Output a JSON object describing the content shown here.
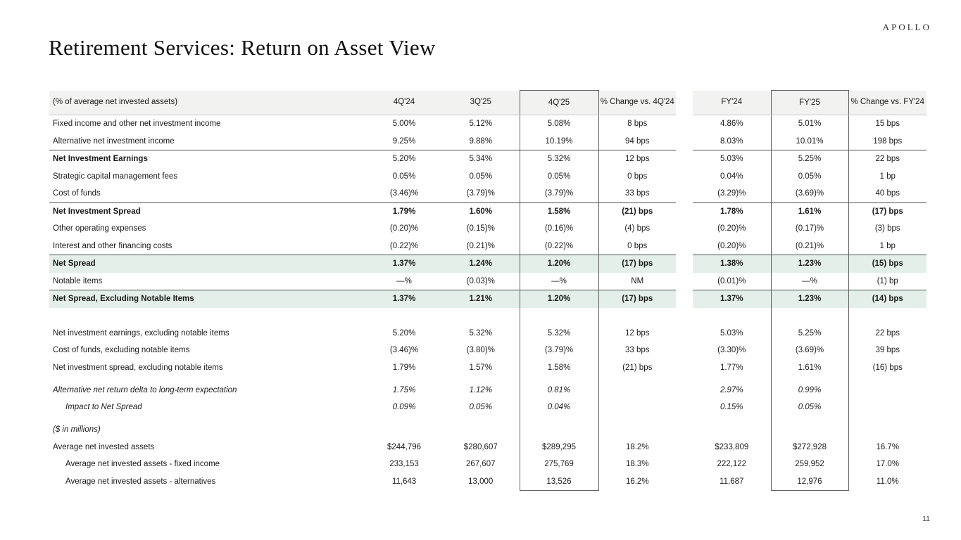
{
  "page": {
    "logo": "APOLLO",
    "title": "Retirement Services: Return on Asset View",
    "page_number": "11"
  },
  "colors": {
    "highlight_row_bg": "#e4efe9",
    "header_row_bg": "#f2f2f0",
    "rule_dark": "#4d4d4d",
    "rule_light": "#c6c6c6",
    "box_border": "#5f5f5f"
  },
  "table": {
    "header": {
      "label": "(% of average net invested assets)",
      "columns": [
        "4Q'24",
        "3Q'25",
        "4Q'25",
        "% Change vs. 4Q'24",
        "FY'24",
        "FY'25",
        "% Change vs. FY'24"
      ]
    },
    "rows": [
      {
        "label": "Fixed income and other net investment income",
        "values": [
          "5.00%",
          "5.12%",
          "5.08%",
          "8 bps",
          "4.86%",
          "5.01%",
          "15 bps"
        ]
      },
      {
        "label": "Alternative net investment income",
        "values": [
          "9.25%",
          "9.88%",
          "10.19%",
          "94 bps",
          "8.03%",
          "10.01%",
          "198 bps"
        ]
      },
      {
        "label": "Net Investment Earnings",
        "bold_label": true,
        "rule": true,
        "values": [
          "5.20%",
          "5.34%",
          "5.32%",
          "12 bps",
          "5.03%",
          "5.25%",
          "22 bps"
        ]
      },
      {
        "label": "Strategic capital management fees",
        "values": [
          "0.05%",
          "0.05%",
          "0.05%",
          "0 bps",
          "0.04%",
          "0.05%",
          "1 bp"
        ]
      },
      {
        "label": "Cost of funds",
        "values": [
          "(3.46)%",
          "(3.79)%",
          "(3.79)%",
          "33 bps",
          "(3.29)%",
          "(3.69)%",
          "40 bps"
        ]
      },
      {
        "label": "Net Investment Spread",
        "bold": true,
        "rule": true,
        "values": [
          "1.79%",
          "1.60%",
          "1.58%",
          "(21) bps",
          "1.78%",
          "1.61%",
          "(17) bps"
        ]
      },
      {
        "label": "Other operating expenses",
        "values": [
          "(0.20)%",
          "(0.15)%",
          "(0.16)%",
          "(4) bps",
          "(0.20)%",
          "(0.17)%",
          "(3) bps"
        ]
      },
      {
        "label": "Interest and other financing costs",
        "values": [
          "(0.22)%",
          "(0.21)%",
          "(0.22)%",
          "0 bps",
          "(0.20)%",
          "(0.21)%",
          "1 bp"
        ]
      },
      {
        "label": "Net Spread",
        "bold": true,
        "rule": true,
        "hl": true,
        "values": [
          "1.37%",
          "1.24%",
          "1.20%",
          "(17) bps",
          "1.38%",
          "1.23%",
          "(15) bps"
        ]
      },
      {
        "label": "Notable items",
        "values": [
          "—%",
          "(0.03)%",
          "—%",
          "NM",
          "(0.01)%",
          "—%",
          "(1) bp"
        ]
      },
      {
        "label": "Net Spread, Excluding Notable Items",
        "bold": true,
        "rule": true,
        "hl": true,
        "values": [
          "1.37%",
          "1.21%",
          "1.20%",
          "(17) bps",
          "1.37%",
          "1.23%",
          "(14) bps"
        ]
      },
      {
        "spacer": "lg"
      },
      {
        "label": "Net investment earnings, excluding notable items",
        "values": [
          "5.20%",
          "5.32%",
          "5.32%",
          "12 bps",
          "5.03%",
          "5.25%",
          "22 bps"
        ]
      },
      {
        "label": "Cost of funds, excluding notable items",
        "values": [
          "(3.46)%",
          "(3.80)%",
          "(3.79)%",
          "33 bps",
          "(3.30)%",
          "(3.69)%",
          "39 bps"
        ]
      },
      {
        "label": "Net investment spread, excluding notable items",
        "values": [
          "1.79%",
          "1.57%",
          "1.58%",
          "(21) bps",
          "1.77%",
          "1.61%",
          "(16) bps"
        ]
      },
      {
        "spacer": "sm"
      },
      {
        "label": "Alternative net return delta to long-term expectation",
        "italic": true,
        "values": [
          "1.75%",
          "1.12%",
          "0.81%",
          "",
          "2.97%",
          "0.99%",
          ""
        ]
      },
      {
        "label": "Impact to Net Spread",
        "italic": true,
        "indent": true,
        "values": [
          "0.09%",
          "0.05%",
          "0.04%",
          "",
          "0.15%",
          "0.05%",
          ""
        ]
      },
      {
        "spacer": "sm"
      },
      {
        "label": "($ in millions)",
        "italic": true,
        "values": [
          "",
          "",
          "",
          "",
          "",
          "",
          ""
        ]
      },
      {
        "label": "Average net invested assets",
        "values": [
          "$244,796",
          "$280,607",
          "$289,295",
          "18.2%",
          "$233,809",
          "$272,928",
          "16.7%"
        ]
      },
      {
        "label": "Average net invested assets - fixed income",
        "indent": true,
        "values": [
          "233,153",
          "267,607",
          "275,769",
          "18.3%",
          "222,122",
          "259,952",
          "17.0%"
        ]
      },
      {
        "label": "Average net invested assets - alternatives",
        "indent": true,
        "values": [
          "11,643",
          "13,000",
          "13,526",
          "16.2%",
          "11,687",
          "12,976",
          "11.0%"
        ]
      }
    ]
  }
}
